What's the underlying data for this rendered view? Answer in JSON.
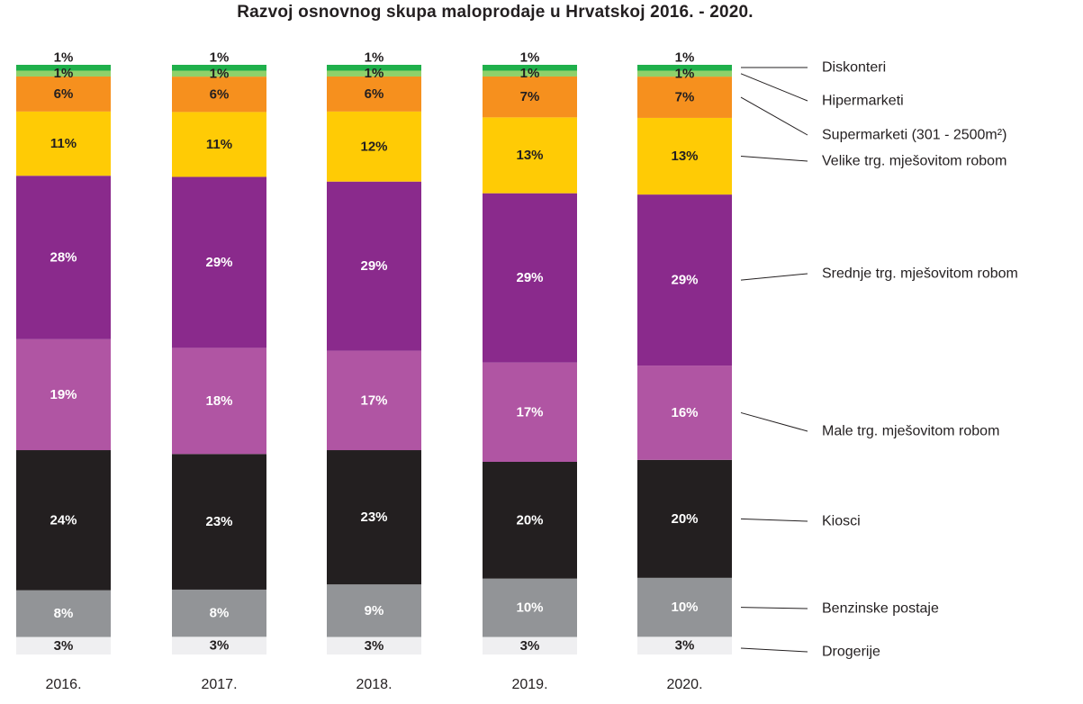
{
  "chart_data": {
    "type": "bar",
    "stacked": true,
    "normalized": true,
    "title": "Razvoj osnovnog skupa maloprodaje u Hrvatskoj 2016. - 2020.",
    "unit": "%",
    "categories": [
      "2016.",
      "2017.",
      "2018.",
      "2019.",
      "2020."
    ],
    "series": [
      {
        "name": "Drogerije",
        "color": "#efeff1",
        "text_color": "#231f20",
        "values": [
          3,
          3,
          3,
          3,
          3
        ],
        "labels": [
          "3%",
          "3%",
          "3%",
          "3%",
          "3%"
        ]
      },
      {
        "name": "Benzinske postaje",
        "color": "#929497",
        "text_color": "#ffffff",
        "values": [
          8,
          8,
          9,
          10,
          10
        ],
        "labels": [
          "8%",
          "8%",
          "9%",
          "10%",
          "10%"
        ]
      },
      {
        "name": "Kiosci",
        "color": "#231f20",
        "text_color": "#ffffff",
        "values": [
          24,
          23,
          23,
          20,
          20
        ],
        "labels": [
          "24%",
          "23%",
          "23%",
          "20%",
          "20%"
        ]
      },
      {
        "name": "Male trg. mješovitom robom",
        "color": "#b055a3",
        "text_color": "#ffffff",
        "values": [
          19,
          18,
          17,
          17,
          16
        ],
        "labels": [
          "19%",
          "18%",
          "17%",
          "17%",
          "16%"
        ]
      },
      {
        "name": "Srednje trg. mješovitom robom",
        "color": "#8a2a8c",
        "text_color": "#ffffff",
        "values": [
          28,
          29,
          29,
          29,
          29
        ],
        "labels": [
          "28%",
          "29%",
          "29%",
          "29%",
          "29%"
        ]
      },
      {
        "name": "Velike trg. mješovitom robom",
        "color": "#ffcb05",
        "text_color": "#231f20",
        "values": [
          11,
          11,
          12,
          13,
          13
        ],
        "labels": [
          "11%",
          "11%",
          "12%",
          "13%",
          "13%"
        ]
      },
      {
        "name": "Supermarketi (301 - 2500m²)",
        "color": "#f6901e",
        "text_color": "#231f20",
        "values": [
          6,
          6,
          6,
          7,
          7
        ],
        "labels": [
          "6%",
          "6%",
          "6%",
          "7%",
          "7%"
        ]
      },
      {
        "name": "Hipermarketi",
        "color": "#8fd16a",
        "text_color": "#231f20",
        "values": [
          1,
          1,
          1,
          1,
          1
        ],
        "labels": [
          "1%",
          "1%",
          "1%",
          "1%",
          "1%"
        ]
      },
      {
        "name": "Diskonteri",
        "color": "#1fb04b",
        "text_color": "#231f20",
        "values": [
          1,
          1,
          1,
          1,
          1
        ],
        "labels": [
          "1%",
          "1%",
          "1%",
          "1%",
          "1%"
        ]
      }
    ],
    "legend_position": "right",
    "grid": false
  }
}
